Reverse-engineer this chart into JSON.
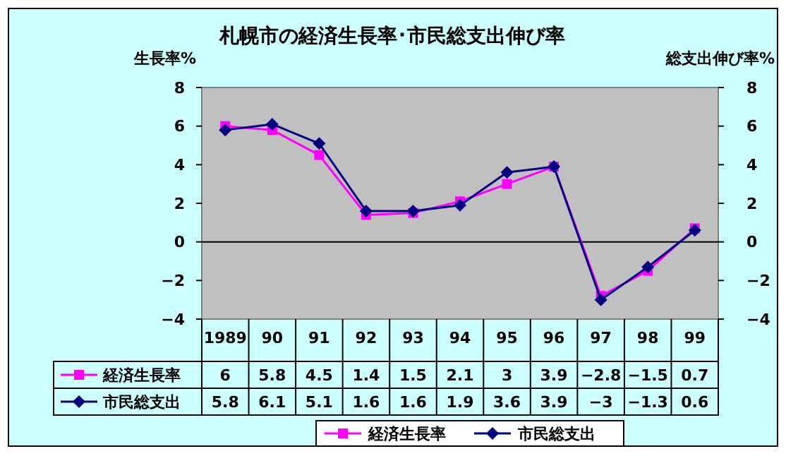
{
  "chart_data": {
    "type": "line",
    "title": "札幌市の経済生長率･市民総支出伸び率",
    "ylabel": "生長率%",
    "y2label": "総支出伸び率%",
    "categories": [
      "1989",
      "90",
      "91",
      "92",
      "93",
      "94",
      "95",
      "96",
      "97",
      "98",
      "99"
    ],
    "series": [
      {
        "name": "経済生長率",
        "color": "#ff00ff",
        "marker": "square",
        "values": [
          6,
          5.8,
          4.5,
          1.4,
          1.5,
          2.1,
          3,
          3.9,
          -2.8,
          -1.5,
          0.7
        ]
      },
      {
        "name": "市民総支出",
        "color": "#000080",
        "marker": "diamond",
        "axis": "y2",
        "values": [
          5.8,
          6.1,
          5.1,
          1.6,
          1.6,
          1.9,
          3.6,
          3.9,
          -3,
          -1.3,
          0.6
        ]
      }
    ],
    "ylim": [
      -4,
      8
    ],
    "yticks": [
      -4,
      -2,
      0,
      2,
      4,
      6,
      8
    ],
    "y2lim": [
      -4,
      8
    ],
    "y2ticks": [
      -4,
      -2,
      0,
      2,
      4,
      6,
      8
    ],
    "data_labels": true,
    "legend": "bottom"
  }
}
